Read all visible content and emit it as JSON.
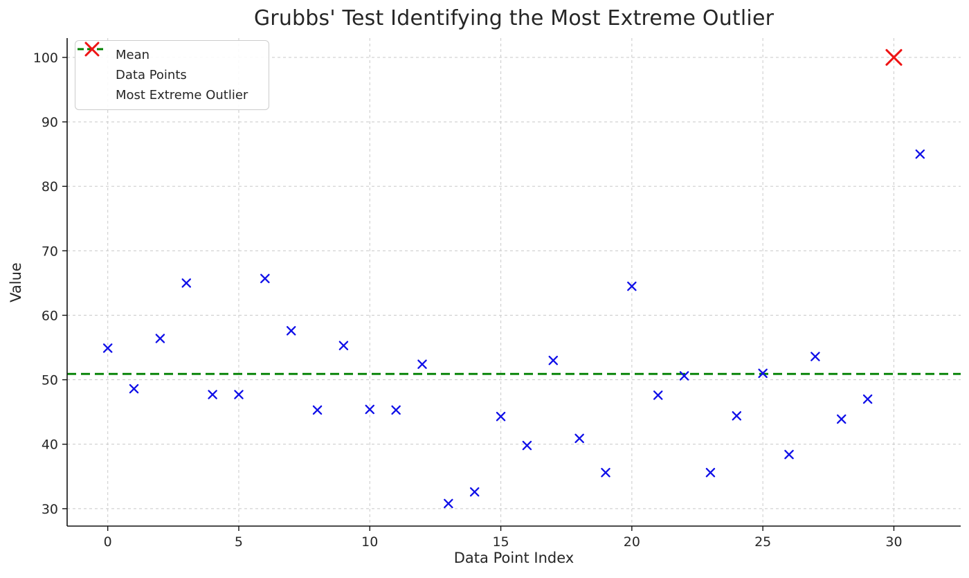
{
  "figure": {
    "title": "Grubbs' Test Identifying the Most Extreme Outlier",
    "xlabel": "Data Point Index",
    "ylabel": "Value"
  },
  "legend": {
    "position": "upper-left",
    "items": [
      {
        "label": "Mean",
        "marker": "dash",
        "color": "#008000"
      },
      {
        "label": "Data Points",
        "marker": "x",
        "color": "#0f0fe8"
      },
      {
        "label": "Most Extreme Outlier",
        "marker": "X",
        "color": "#ee1414"
      }
    ]
  },
  "chart_data": {
    "type": "scatter",
    "title": "Grubbs' Test Identifying the Most Extreme Outlier",
    "xlabel": "Data Point Index",
    "ylabel": "Value",
    "xlim": [
      -1.55,
      32.55
    ],
    "ylim": [
      27.3,
      103.0
    ],
    "x_ticks": [
      0,
      5,
      10,
      15,
      20,
      25,
      30
    ],
    "y_ticks": [
      30,
      40,
      50,
      60,
      70,
      80,
      90,
      100
    ],
    "grid": true,
    "grid_style": "dashed",
    "legend_position": "upper-left",
    "mean_line": {
      "label": "Mean",
      "value": 50.9,
      "color": "#008000",
      "dash": [
        13,
        7
      ]
    },
    "series": [
      {
        "name": "Data Points",
        "marker": "x",
        "color": "#0f0fe8",
        "x": [
          0,
          1,
          2,
          3,
          4,
          5,
          6,
          7,
          8,
          9,
          10,
          11,
          12,
          13,
          14,
          15,
          16,
          17,
          18,
          19,
          20,
          21,
          22,
          23,
          24,
          25,
          26,
          27,
          28,
          29,
          31
        ],
        "y": [
          54.9,
          48.6,
          56.4,
          65.0,
          47.7,
          47.7,
          65.7,
          57.6,
          45.3,
          55.3,
          45.4,
          45.3,
          52.4,
          30.8,
          32.6,
          44.3,
          39.8,
          53.0,
          40.9,
          35.6,
          64.5,
          47.6,
          50.6,
          35.6,
          44.4,
          51.0,
          38.4,
          53.6,
          43.9,
          47.0,
          85.0
        ]
      },
      {
        "name": "Most Extreme Outlier",
        "marker": "X",
        "color": "#ee1414",
        "x": [
          30
        ],
        "y": [
          100.0
        ]
      }
    ]
  }
}
